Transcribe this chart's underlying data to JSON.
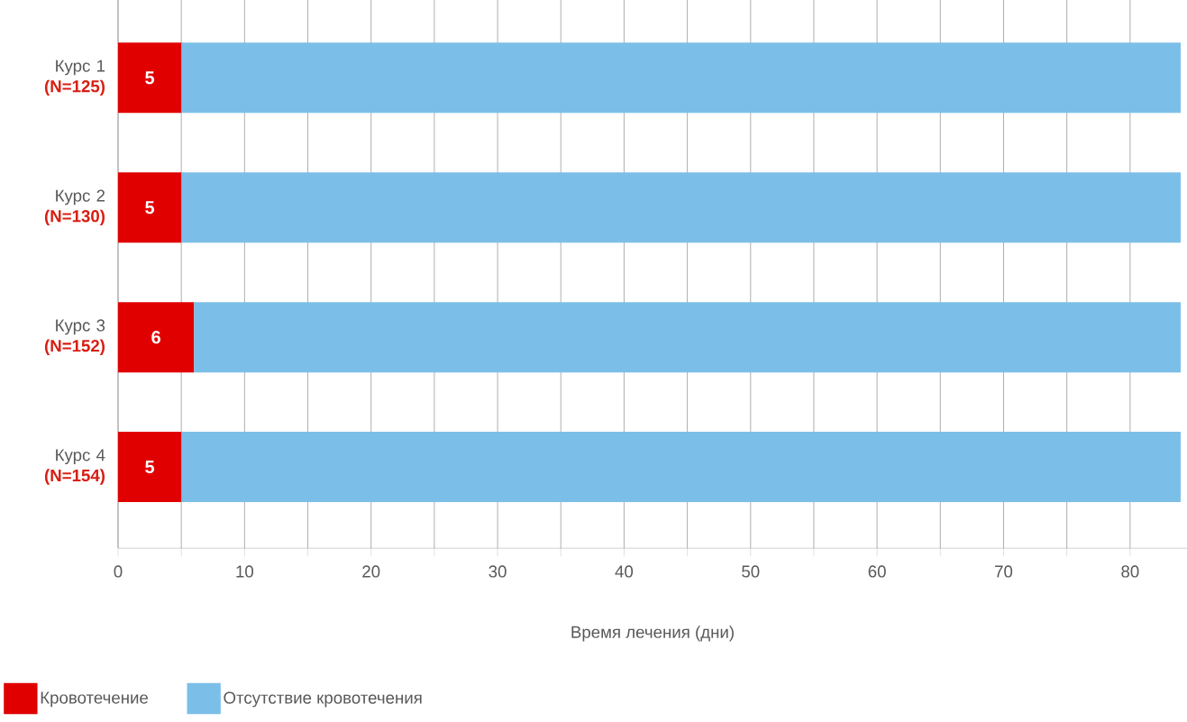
{
  "chart_data": {
    "type": "bar",
    "orientation": "horizontal",
    "stacked": true,
    "categories": [
      "Курс 1 **(N=125)**",
      "Курс 2 **(N=130)**",
      "Курс 3 **(N=152)**",
      "Курс 4 **(N=154)**"
    ],
    "xlabel": "Время лечения (дни)",
    "xlim": [
      0,
      84.5
    ],
    "xticks": [
      0,
      {
        "value": 5,
        "label": null
      },
      10,
      {
        "value": 15,
        "label": null
      },
      20,
      {
        "value": 25,
        "label": null
      },
      30,
      {
        "value": 35,
        "label": null
      },
      40,
      {
        "value": 45,
        "label": null
      },
      50,
      {
        "value": 55,
        "label": null
      },
      60,
      {
        "value": 65,
        "label": null
      },
      70,
      {
        "value": 75,
        "label": null
      },
      80
    ],
    "grid": "x",
    "legend": "bottom",
    "series": [
      {
        "name": "Кровотечение",
        "color": "#e00000",
        "values": [
          5,
          5,
          6,
          5
        ],
        "value_labels": [
          "5",
          "5",
          "6",
          "5"
        ]
      },
      {
        "name": "Отсутствие кровотечения",
        "color": "#7bbfe8",
        "values": [
          79,
          79,
          78,
          79
        ]
      }
    ]
  }
}
